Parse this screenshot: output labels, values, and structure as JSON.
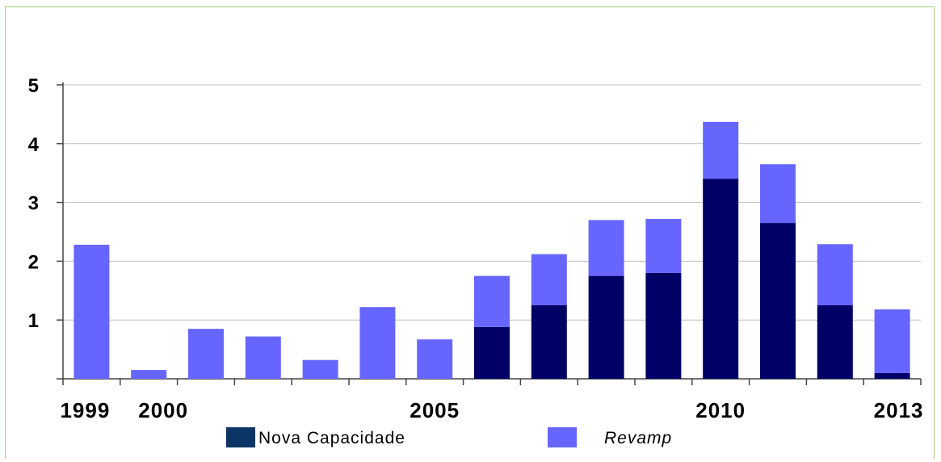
{
  "chart_data": {
    "type": "bar",
    "stacked": true,
    "categories": [
      "1999",
      "2000",
      "2001",
      "2002",
      "2003",
      "2004",
      "2005",
      "2006",
      "2007",
      "2008",
      "2009",
      "2010",
      "2011",
      "2012",
      "2013"
    ],
    "x_tick_labels": [
      "1999",
      "2000",
      "2005",
      "2010",
      "2013"
    ],
    "y_ticks": [
      "1",
      "2",
      "3",
      "4",
      "5"
    ],
    "ylim": [
      0,
      5
    ],
    "grid": true,
    "legend_position": "bottom",
    "series": [
      {
        "name": "Nova Capacidade",
        "color": "#000066",
        "values": [
          0,
          0,
          0,
          0,
          0,
          0,
          0,
          0.88,
          1.25,
          1.75,
          1.8,
          3.4,
          2.65,
          1.25,
          0.1
        ]
      },
      {
        "name": "Revamp",
        "color": "#6666ff",
        "values": [
          2.28,
          0.15,
          0.85,
          0.72,
          0.32,
          1.22,
          0.67,
          0.87,
          0.87,
          0.95,
          0.92,
          0.97,
          1.0,
          1.04,
          1.08
        ]
      }
    ]
  }
}
